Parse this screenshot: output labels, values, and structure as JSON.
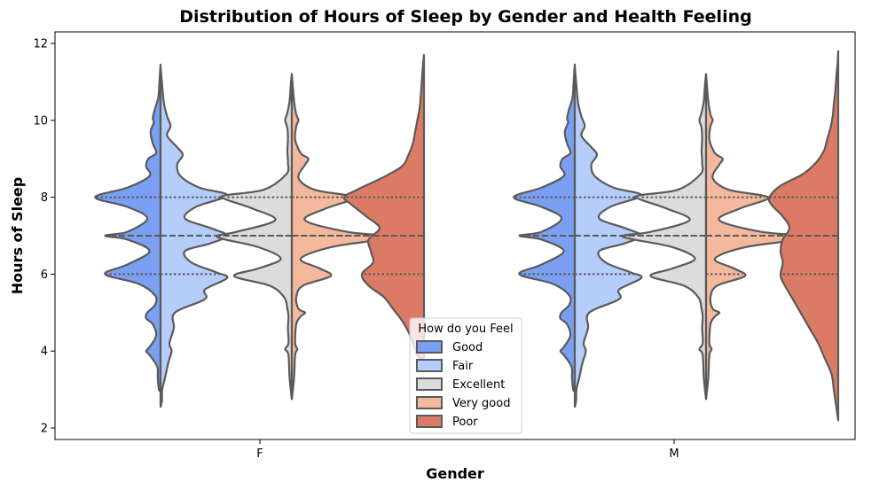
{
  "chart_data": {
    "type": "violin",
    "title": "Distribution of Hours of Sleep by Gender and Health Feeling",
    "xlabel": "Gender",
    "ylabel": "Hours of Sleep",
    "categories": [
      "F",
      "M"
    ],
    "ylim": [
      1.7,
      12.3
    ],
    "yticks": [
      2,
      4,
      6,
      8,
      10,
      12
    ],
    "split": true,
    "inner": "quartile",
    "grid": false,
    "legend": {
      "title": "How do you Feel",
      "placement": "lower-center",
      "entries": [
        "Good",
        "Fair",
        "Excellent",
        "Very good",
        "Poor"
      ]
    },
    "hue_colors": {
      "Good": "#7b9ff2",
      "Fair": "#b5cdfb",
      "Excellent": "#dddcdc",
      "Very good": "#f4b89c",
      "Poor": "#dc7b65"
    },
    "outline_color": "#5a5a5a",
    "groups": [
      {
        "category": "F",
        "pairs": [
          {
            "left": {
              "series": "Good",
              "y": [
                2.95,
                3.0,
                3.3,
                3.6,
                3.9,
                4.0,
                4.1,
                4.4,
                4.7,
                4.85,
                5.0,
                5.2,
                5.45,
                5.75,
                6.0,
                6.25,
                6.6,
                6.9,
                7.0,
                7.1,
                7.45,
                7.75,
                8.0,
                8.25,
                8.55,
                8.8,
                9.0,
                9.15,
                9.4,
                9.7,
                9.95,
                10.05,
                10.3,
                10.6,
                11.0,
                11.45
              ],
              "density": [
                0.0,
                0.015,
                0.025,
                0.03,
                0.1,
                0.13,
                0.1,
                0.04,
                0.07,
                0.13,
                0.12,
                0.05,
                0.05,
                0.2,
                0.5,
                0.3,
                0.1,
                0.3,
                0.5,
                0.3,
                0.12,
                0.3,
                0.59,
                0.3,
                0.1,
                0.13,
                0.11,
                0.04,
                0.07,
                0.09,
                0.06,
                0.07,
                0.05,
                0.02,
                0.01,
                0.0
              ],
              "quartiles": [
                6,
                7,
                8
              ]
            },
            "right": {
              "series": "Fair",
              "y": [
                2.55,
                2.7,
                3.0,
                3.3,
                3.7,
                4.0,
                4.2,
                4.6,
                5.0,
                5.35,
                5.6,
                5.9,
                6.05,
                6.3,
                6.6,
                6.8,
                7.0,
                7.2,
                7.45,
                7.75,
                8.05,
                8.25,
                8.55,
                8.85,
                9.1,
                9.3,
                9.6,
                9.85,
                10.1,
                10.45,
                10.9,
                11.4
              ],
              "density": [
                0.0,
                0.012,
                0.015,
                0.04,
                0.07,
                0.1,
                0.08,
                0.12,
                0.13,
                0.4,
                0.4,
                0.6,
                0.5,
                0.28,
                0.22,
                0.45,
                0.6,
                0.45,
                0.22,
                0.32,
                0.6,
                0.35,
                0.18,
                0.15,
                0.2,
                0.15,
                0.06,
                0.09,
                0.06,
                0.03,
                0.015,
                0.0
              ],
              "quartiles": [
                6,
                7,
                8
              ]
            }
          },
          {
            "left": {
              "series": "Excellent",
              "y": [
                2.75,
                3.3,
                3.9,
                4.05,
                4.2,
                4.6,
                4.9,
                5.1,
                5.4,
                5.7,
                5.95,
                6.15,
                6.4,
                6.7,
                6.9,
                7.0,
                7.1,
                7.4,
                7.7,
                7.95,
                8.05,
                8.2,
                8.6,
                8.9,
                9.2,
                9.5,
                9.8,
                10.0,
                10.2,
                10.5,
                10.9,
                11.2
              ],
              "density": [
                0.0,
                0.02,
                0.03,
                0.06,
                0.03,
                0.035,
                0.03,
                0.04,
                0.07,
                0.2,
                0.52,
                0.3,
                0.1,
                0.3,
                0.6,
                0.67,
                0.5,
                0.15,
                0.35,
                0.6,
                0.6,
                0.25,
                0.05,
                0.035,
                0.04,
                0.035,
                0.04,
                0.06,
                0.04,
                0.02,
                0.01,
                0.0
              ],
              "quartiles": [
                7,
                7,
                8
              ]
            },
            "right": {
              "series": "Very good",
              "y": [
                2.75,
                3.3,
                3.9,
                4.05,
                4.2,
                4.7,
                4.9,
                5.0,
                5.1,
                5.4,
                5.7,
                5.95,
                6.15,
                6.4,
                6.7,
                6.9,
                7.0,
                7.1,
                7.4,
                7.7,
                7.95,
                8.05,
                8.2,
                8.5,
                8.85,
                9.0,
                9.15,
                9.5,
                9.85,
                10.0,
                10.15,
                10.5,
                11.2
              ],
              "density": [
                0.0,
                0.02,
                0.03,
                0.05,
                0.03,
                0.04,
                0.08,
                0.12,
                0.06,
                0.04,
                0.1,
                0.35,
                0.25,
                0.08,
                0.35,
                0.8,
                0.85,
                0.5,
                0.12,
                0.3,
                0.55,
                0.5,
                0.2,
                0.06,
                0.12,
                0.15,
                0.08,
                0.03,
                0.04,
                0.06,
                0.04,
                0.02,
                0.0
              ],
              "quartiles": [
                7,
                7,
                8
              ]
            }
          },
          {
            "left": {
              "series": "Poor",
              "y": [
                3.7,
                3.9,
                4.2,
                4.5,
                4.8,
                5.1,
                5.4,
                5.7,
                6.0,
                6.3,
                6.6,
                6.9,
                7.2,
                7.5,
                7.8,
                8.0,
                8.2,
                8.5,
                8.8,
                9.1,
                9.4,
                9.7,
                10.0,
                10.3,
                10.6,
                11.0,
                11.4,
                11.7
              ],
              "density": [
                0.0,
                0.06,
                0.1,
                0.14,
                0.2,
                0.28,
                0.36,
                0.5,
                0.56,
                0.46,
                0.48,
                0.5,
                0.4,
                0.52,
                0.65,
                0.72,
                0.6,
                0.38,
                0.2,
                0.14,
                0.1,
                0.08,
                0.06,
                0.04,
                0.03,
                0.02,
                0.01,
                0.0
              ],
              "quartiles": [
                6,
                7,
                8
              ]
            },
            "right": null
          }
        ]
      },
      {
        "category": "M",
        "pairs": [
          {
            "left": {
              "series": "Good",
              "y": [
                2.95,
                3.0,
                3.3,
                3.6,
                3.9,
                4.0,
                4.1,
                4.4,
                4.7,
                4.85,
                5.0,
                5.2,
                5.45,
                5.75,
                6.0,
                6.25,
                6.6,
                6.9,
                7.0,
                7.1,
                7.45,
                7.75,
                8.0,
                8.25,
                8.55,
                8.8,
                9.0,
                9.15,
                9.4,
                9.7,
                9.95,
                10.05,
                10.3,
                10.6,
                11.0,
                11.45
              ],
              "density": [
                0.0,
                0.015,
                0.025,
                0.03,
                0.1,
                0.13,
                0.1,
                0.04,
                0.07,
                0.13,
                0.12,
                0.05,
                0.05,
                0.2,
                0.5,
                0.3,
                0.1,
                0.3,
                0.5,
                0.3,
                0.12,
                0.3,
                0.55,
                0.3,
                0.1,
                0.13,
                0.11,
                0.04,
                0.07,
                0.09,
                0.06,
                0.07,
                0.05,
                0.02,
                0.01,
                0.0
              ],
              "quartiles": [
                6,
                7,
                8
              ]
            },
            "right": {
              "series": "Fair",
              "y": [
                2.55,
                2.7,
                3.0,
                3.3,
                3.7,
                4.0,
                4.2,
                4.6,
                5.0,
                5.35,
                5.6,
                5.9,
                6.05,
                6.3,
                6.6,
                6.8,
                7.0,
                7.2,
                7.45,
                7.75,
                8.05,
                8.25,
                8.55,
                8.85,
                9.1,
                9.3,
                9.6,
                9.85,
                10.1,
                10.45,
                10.9,
                11.4
              ],
              "density": [
                0.0,
                0.012,
                0.015,
                0.04,
                0.07,
                0.1,
                0.08,
                0.12,
                0.13,
                0.4,
                0.4,
                0.6,
                0.5,
                0.28,
                0.22,
                0.45,
                0.6,
                0.45,
                0.22,
                0.32,
                0.6,
                0.35,
                0.18,
                0.15,
                0.2,
                0.15,
                0.06,
                0.09,
                0.06,
                0.03,
                0.015,
                0.0
              ],
              "quartiles": [
                6,
                7,
                8
              ]
            }
          },
          {
            "left": {
              "series": "Excellent",
              "y": [
                2.75,
                3.3,
                3.9,
                4.05,
                4.2,
                4.6,
                4.9,
                5.1,
                5.4,
                5.7,
                5.95,
                6.15,
                6.4,
                6.7,
                6.9,
                7.0,
                7.1,
                7.4,
                7.7,
                7.95,
                8.05,
                8.2,
                8.6,
                8.9,
                9.2,
                9.5,
                9.8,
                10.0,
                10.2,
                10.5,
                10.9,
                11.2
              ],
              "density": [
                0.0,
                0.02,
                0.03,
                0.06,
                0.03,
                0.035,
                0.03,
                0.04,
                0.07,
                0.2,
                0.5,
                0.3,
                0.1,
                0.3,
                0.65,
                0.75,
                0.5,
                0.15,
                0.35,
                0.6,
                0.6,
                0.25,
                0.05,
                0.035,
                0.04,
                0.035,
                0.04,
                0.06,
                0.04,
                0.02,
                0.01,
                0.0
              ],
              "quartiles": [
                7,
                7,
                8
              ]
            },
            "right": {
              "series": "Very good",
              "y": [
                2.75,
                3.3,
                3.9,
                4.05,
                4.2,
                4.7,
                4.9,
                5.0,
                5.1,
                5.4,
                5.7,
                5.95,
                6.15,
                6.4,
                6.7,
                6.9,
                7.0,
                7.1,
                7.4,
                7.7,
                7.95,
                8.05,
                8.2,
                8.5,
                8.85,
                9.0,
                9.15,
                9.5,
                9.85,
                10.0,
                10.15,
                10.5,
                11.2
              ],
              "density": [
                0.0,
                0.02,
                0.03,
                0.05,
                0.03,
                0.04,
                0.08,
                0.12,
                0.06,
                0.04,
                0.1,
                0.35,
                0.25,
                0.08,
                0.35,
                0.85,
                0.9,
                0.5,
                0.12,
                0.3,
                0.55,
                0.5,
                0.2,
                0.06,
                0.12,
                0.15,
                0.08,
                0.03,
                0.04,
                0.06,
                0.04,
                0.02,
                0.0
              ],
              "quartiles": [
                6,
                7,
                8
              ]
            }
          },
          {
            "left": {
              "series": "Poor",
              "y": [
                2.2,
                2.6,
                3.0,
                3.4,
                3.8,
                4.2,
                4.6,
                5.0,
                5.4,
                5.8,
                6.0,
                6.3,
                6.6,
                6.9,
                7.2,
                7.5,
                7.8,
                8.0,
                8.3,
                8.6,
                8.9,
                9.2,
                9.5,
                9.8,
                10.1,
                10.4,
                10.8,
                11.2,
                11.5,
                11.8
              ],
              "density": [
                0.0,
                0.02,
                0.04,
                0.06,
                0.12,
                0.18,
                0.26,
                0.34,
                0.42,
                0.5,
                0.52,
                0.5,
                0.52,
                0.5,
                0.44,
                0.5,
                0.6,
                0.62,
                0.52,
                0.32,
                0.2,
                0.13,
                0.1,
                0.07,
                0.05,
                0.04,
                0.025,
                0.015,
                0.005,
                0.0
              ],
              "quartiles": [
                6,
                7,
                8
              ]
            },
            "right": null
          }
        ]
      }
    ]
  }
}
